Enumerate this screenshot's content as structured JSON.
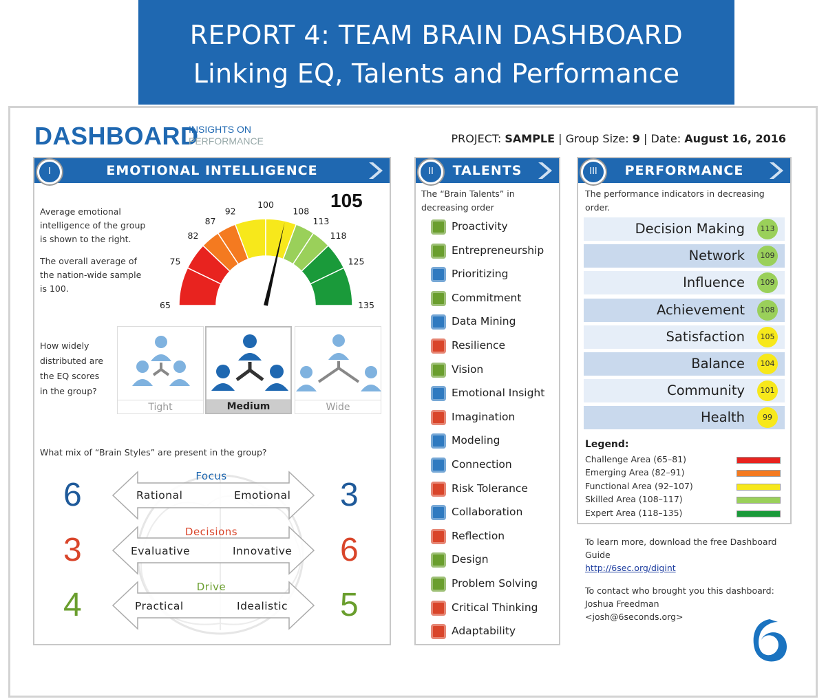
{
  "banner": {
    "line1": "REPORT 4: TEAM BRAIN DASHBOARD",
    "line2": "Linking EQ, Talents and Performance"
  },
  "logo": {
    "main": "DASHBOARD",
    "sub1": "INSIGHTS ON",
    "sub2": "PERFORMANCE"
  },
  "project": {
    "label": "PROJECT:",
    "name": "SAMPLE",
    "group_label": "Group Size:",
    "group_size": "9",
    "date_label": "Date:",
    "date": "August 16, 2016"
  },
  "colors": {
    "brand": "#1f68b1",
    "challenge": "#e8231f",
    "emerging": "#f47a20",
    "functional": "#f7e81b",
    "skilled": "#9ad05a",
    "expert": "#1a9a3a"
  },
  "eq": {
    "number": "I",
    "title": "EMOTIONAL INTELLIGENCE",
    "desc1": "Average emotional intelligence of the group is shown to the right.",
    "desc2": "The overall average of the nation-wide sample is 100.",
    "score": "105",
    "score_value": 105,
    "gauge_min": 65,
    "gauge_max": 135,
    "ticks": [
      "65",
      "75",
      "82",
      "87",
      "92",
      "100",
      "108",
      "113",
      "118",
      "125",
      "135"
    ],
    "dist_question": "How widely distributed are the EQ scores in the group?",
    "dist_options": [
      "Tight",
      "Medium",
      "Wide"
    ],
    "dist_selected": "Medium",
    "styles_question": "What mix of “Brain Styles” are present in the group?",
    "styles": [
      {
        "category": "Focus",
        "left_label": "Rational",
        "right_label": "Emotional",
        "left_value": "6",
        "right_value": "3",
        "color": "#1f5a9a"
      },
      {
        "category": "Decisions",
        "left_label": "Evaluative",
        "right_label": "Innovative",
        "left_value": "3",
        "right_value": "6",
        "color": "#d9452a"
      },
      {
        "category": "Drive",
        "left_label": "Practical",
        "right_label": "Idealistic",
        "left_value": "4",
        "right_value": "5",
        "color": "#6a9e2e"
      }
    ]
  },
  "talents": {
    "number": "II",
    "title": "TALENTS",
    "desc": "The “Brain Talents” in decreasing order",
    "items": [
      {
        "label": "Proactivity",
        "icon": "proactivity-icon",
        "color": "#6a9e2e"
      },
      {
        "label": "Entrepreneurship",
        "icon": "entrepreneurship-icon",
        "color": "#6a9e2e"
      },
      {
        "label": "Prioritizing",
        "icon": "prioritizing-icon",
        "color": "#2f7ac0"
      },
      {
        "label": "Commitment",
        "icon": "commitment-icon",
        "color": "#6a9e2e"
      },
      {
        "label": "Data Mining",
        "icon": "data-mining-icon",
        "color": "#2f7ac0"
      },
      {
        "label": "Resilience",
        "icon": "resilience-icon",
        "color": "#d9452a"
      },
      {
        "label": "Vision",
        "icon": "vision-icon",
        "color": "#6a9e2e"
      },
      {
        "label": "Emotional Insight",
        "icon": "emotional-insight-icon",
        "color": "#2f7ac0"
      },
      {
        "label": "Imagination",
        "icon": "imagination-icon",
        "color": "#d9452a"
      },
      {
        "label": "Modeling",
        "icon": "modeling-icon",
        "color": "#2f7ac0"
      },
      {
        "label": "Connection",
        "icon": "connection-icon",
        "color": "#2f7ac0"
      },
      {
        "label": "Risk Tolerance",
        "icon": "risk-tolerance-icon",
        "color": "#d9452a"
      },
      {
        "label": "Collaboration",
        "icon": "collaboration-icon",
        "color": "#2f7ac0"
      },
      {
        "label": "Reflection",
        "icon": "reflection-icon",
        "color": "#d9452a"
      },
      {
        "label": "Design",
        "icon": "design-icon",
        "color": "#6a9e2e"
      },
      {
        "label": "Problem Solving",
        "icon": "problem-solving-icon",
        "color": "#6a9e2e"
      },
      {
        "label": "Critical Thinking",
        "icon": "critical-thinking-icon",
        "color": "#d9452a"
      },
      {
        "label": "Adaptability",
        "icon": "adaptability-icon",
        "color": "#d9452a"
      }
    ]
  },
  "performance": {
    "number": "III",
    "title": "PERFORMANCE",
    "desc": "The performance indicators in decreasing order.",
    "items": [
      {
        "label": "Decision Making",
        "value": "113",
        "color": "#9ad05a"
      },
      {
        "label": "Network",
        "value": "109",
        "color": "#9ad05a"
      },
      {
        "label": "Influence",
        "value": "109",
        "color": "#9ad05a"
      },
      {
        "label": "Achievement",
        "value": "108",
        "color": "#9ad05a"
      },
      {
        "label": "Satisfaction",
        "value": "105",
        "color": "#f7e81b"
      },
      {
        "label": "Balance",
        "value": "104",
        "color": "#f7e81b"
      },
      {
        "label": "Community",
        "value": "101",
        "color": "#f7e81b"
      },
      {
        "label": "Health",
        "value": "99",
        "color": "#f7e81b"
      }
    ],
    "legend_title": "Legend:",
    "legend": [
      {
        "label": "Challenge Area (65–81)",
        "color": "#e8231f"
      },
      {
        "label": "Emerging Area (82–91)",
        "color": "#f47a20"
      },
      {
        "label": "Functional Area (92–107)",
        "color": "#f7e81b"
      },
      {
        "label": "Skilled Area (108–117)",
        "color": "#9ad05a"
      },
      {
        "label": "Expert Area (118–135)",
        "color": "#1a9a3a"
      }
    ]
  },
  "footer": {
    "learn": "To learn more, download the free Dashboard Guide",
    "link": "http://6sec.org/digint",
    "contact": "To contact who brought you this dashboard:",
    "name": "Joshua Freedman",
    "email": "<josh@6seconds.org>"
  }
}
